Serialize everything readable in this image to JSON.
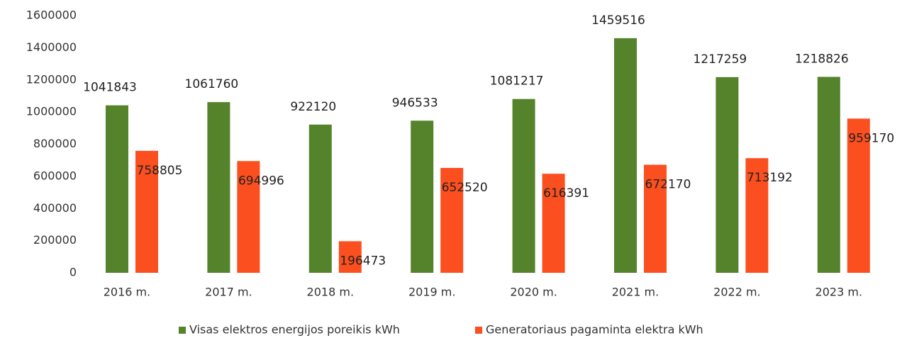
{
  "chart_data": {
    "type": "bar",
    "categories": [
      "2016 m.",
      "2017 m.",
      "2018 m.",
      "2019 m.",
      "2020 m.",
      "2021 m.",
      "2022 m.",
      "2023 m."
    ],
    "series": [
      {
        "name": "Visas elektros energijos poreikis kWh",
        "color": "#55832b",
        "values": [
          1041843,
          1061760,
          922120,
          946533,
          1081217,
          1459516,
          1217259,
          1218826
        ]
      },
      {
        "name": "Generatoriaus pagaminta elektra kWh",
        "color": "#fb4f1f",
        "values": [
          758805,
          694996,
          196473,
          652520,
          616391,
          672170,
          713192,
          959170
        ]
      }
    ],
    "ylim": [
      0,
      1600000
    ],
    "yticks": [
      0,
      200000,
      400000,
      600000,
      800000,
      1000000,
      1200000,
      1400000,
      1600000
    ],
    "grid": false,
    "legend": "bottom"
  }
}
